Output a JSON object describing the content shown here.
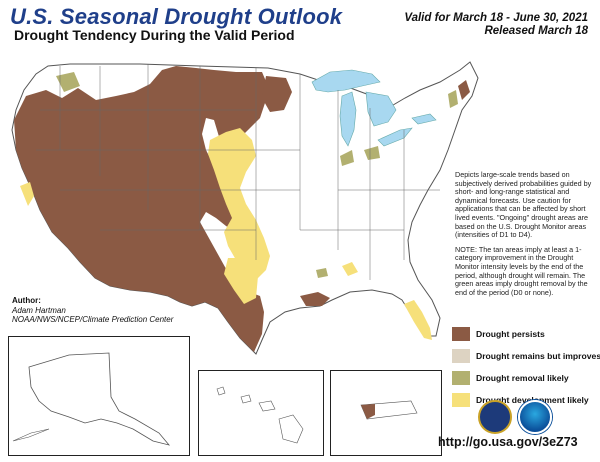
{
  "header": {
    "title": "U.S. Seasonal Drought Outlook",
    "subtitle": "Drought Tendency During the Valid Period",
    "valid_period": "Valid for March 18 - June 30, 2021",
    "released": "Released March 18"
  },
  "description": [
    "Depicts large-scale trends based on subjectively derived probabilities guided by short- and long-range statistical and dynamical forecasts. Use caution for applications that can be affected by short lived events. \"Ongoing\" drought areas are based on the U.S. Drought Monitor areas (intensities of D1 to D4).",
    "NOTE: The tan areas imply at least a 1-category improvement in the Drought Monitor intensity levels by the end of the period, although drought will remain. The green areas imply drought removal by the end of the period (D0 or none)."
  ],
  "legend": [
    {
      "label": "Drought persists",
      "color": "#8b5a44"
    },
    {
      "label": "Drought remains but improves",
      "color": "#ddd3c2"
    },
    {
      "label": "Drought removal likely",
      "color": "#b2b070"
    },
    {
      "label": "Drought development likely",
      "color": "#f6e07a"
    }
  ],
  "author": {
    "heading": "Author:",
    "name": "Adam Hartman",
    "org": "NOAA/NWS/NCEP/Climate Prediction Center"
  },
  "url": "http://go.usa.gov/3eZ73",
  "colors": {
    "land": "#ffffff",
    "water": "#a8d8f0",
    "border": "#777777",
    "title": "#1f3f8a"
  }
}
